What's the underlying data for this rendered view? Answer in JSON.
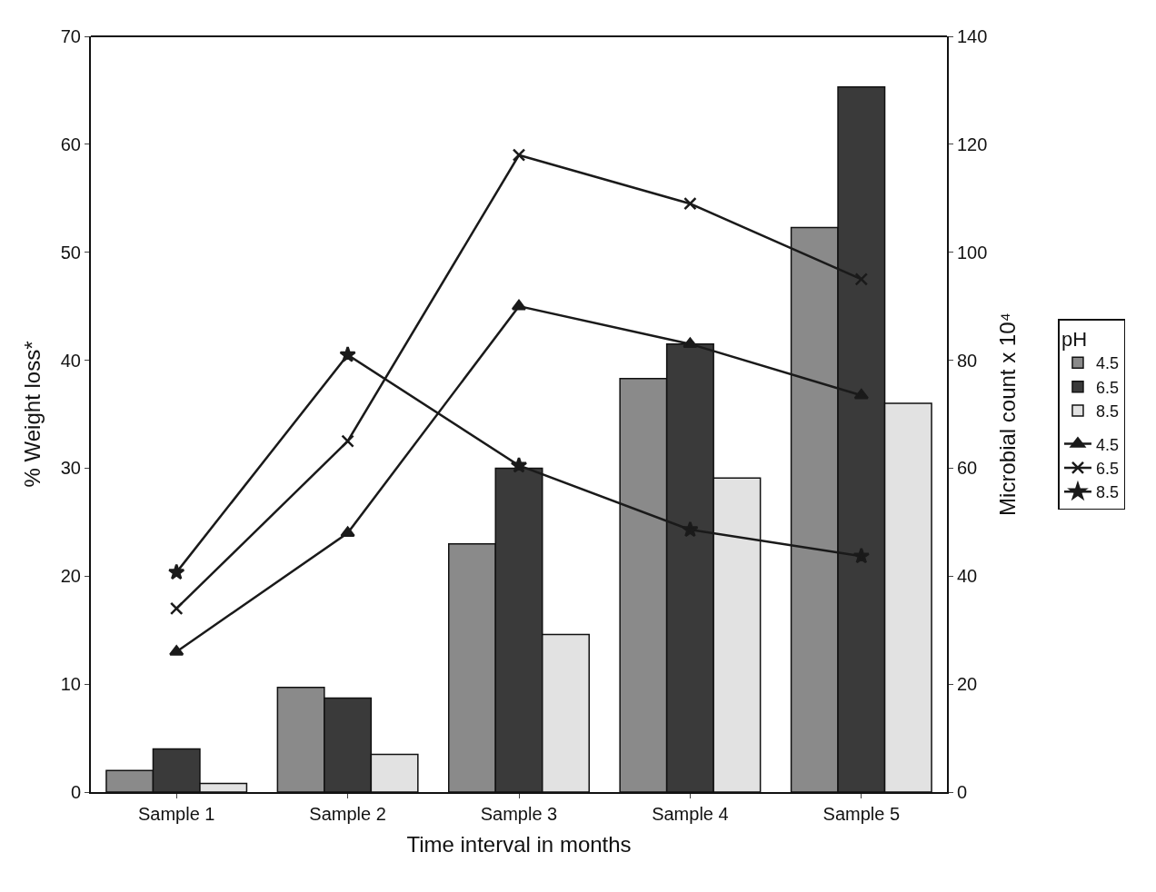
{
  "chart_data": {
    "type": "bar",
    "xlabel": "Time interval in months",
    "ylabel": "% Weight loss*",
    "y2label": "Microbial count x 10⁴",
    "legend_title": "pH",
    "categories": [
      "Sample 1",
      "Sample 2",
      "Sample 3",
      "Sample 4",
      "Sample 5"
    ],
    "series": [
      {
        "name": "4.5",
        "color": "#8a8a8a",
        "values": [
          2,
          9.7,
          23,
          38.3,
          52.3
        ]
      },
      {
        "name": "6.5",
        "color": "#3a3a3a",
        "values": [
          4,
          8.7,
          30,
          41.5,
          65.3
        ]
      },
      {
        "name": "8.5",
        "color": "#e2e2e2",
        "values": [
          0.8,
          3.5,
          14.6,
          29.1,
          36
        ]
      },
      {
        "name": "4.5",
        "type": "line",
        "axis": "y2",
        "marker": "triangle",
        "color": "#1a1a1a",
        "values": [
          26,
          48,
          90,
          83,
          73.5
        ]
      },
      {
        "name": "6.5",
        "type": "line",
        "axis": "y2",
        "marker": "cross",
        "color": "#1a1a1a",
        "values": [
          34,
          65,
          118,
          109,
          95
        ]
      },
      {
        "name": "8.5",
        "type": "line",
        "axis": "y2",
        "marker": "star",
        "color": "#1a1a1a",
        "values": [
          40.7,
          81,
          60.5,
          48.6,
          43.7
        ]
      }
    ],
    "ylim": [
      0,
      70
    ],
    "yticks": [
      0,
      10,
      20,
      30,
      40,
      50,
      60,
      70
    ],
    "y2lim": [
      0,
      140
    ],
    "y2ticks": [
      0,
      20,
      40,
      60,
      80,
      100,
      120,
      140
    ],
    "legend": "right"
  }
}
